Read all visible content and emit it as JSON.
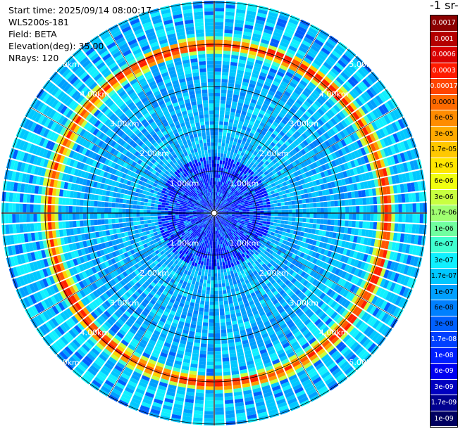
{
  "window": {
    "info_lines": [
      "Start time: 2025/09/14 08:00:17",
      "WLS200s-181",
      "Field: BETA",
      "Elevation(deg): 35.00",
      "NRays: 120"
    ]
  },
  "colorbar": {
    "title": "-1 sr-",
    "ticks": [
      "0.0017",
      "0.001",
      "0.0006",
      "0.0003",
      "0.00017",
      "0.0001",
      "6e-05",
      "3e-05",
      "1.7e-05",
      "1e-05",
      "6e-06",
      "3e-06",
      "1.7e-06",
      "1e-06",
      "6e-07",
      "3e-07",
      "1.7e-07",
      "1e-07",
      "6e-08",
      "3e-08",
      "1.7e-08",
      "1e-08",
      "6e-09",
      "3e-09",
      "1.7e-09",
      "1e-09"
    ],
    "colors": [
      "#8b0000",
      "#b40000",
      "#d90000",
      "#ff1a00",
      "#ff4400",
      "#ff6a00",
      "#ff8c00",
      "#ffaa00",
      "#ffc800",
      "#ffe600",
      "#f0ff10",
      "#c8ff40",
      "#a0ff70",
      "#70ffa0",
      "#40ffd0",
      "#10f0ff",
      "#00c8ff",
      "#00a0ff",
      "#0080ff",
      "#0060ff",
      "#0040ff",
      "#0020ff",
      "#0000f0",
      "#0000c0",
      "#000090",
      "#000060"
    ],
    "dark_text_from_index": 0,
    "light_text_indices": [
      0,
      1,
      2,
      3,
      4,
      20,
      21,
      22,
      23,
      24,
      25
    ]
  },
  "polar": {
    "ring_labels": [
      "1.00km",
      "2.00km",
      "3.00km",
      "4.00km",
      "5.00km"
    ],
    "nrays": 120
  }
}
